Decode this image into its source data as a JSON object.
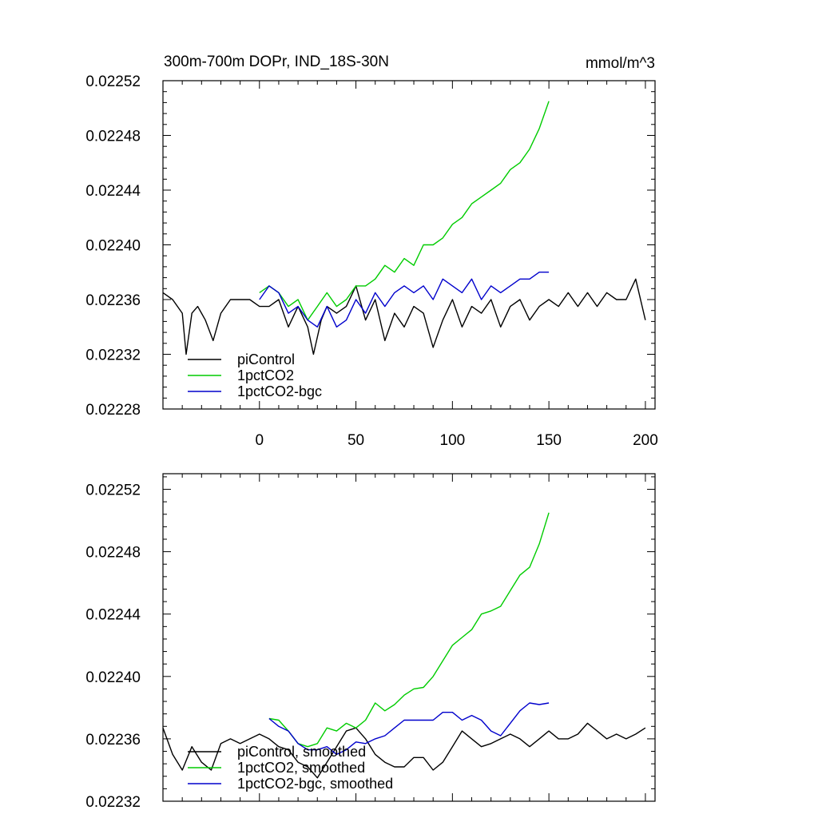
{
  "header": {
    "title": "300m-700m DOPr, IND_18S-30N",
    "units": "mmol/m^3"
  },
  "chart_data": [
    {
      "type": "line",
      "panel": "top",
      "xlim": [
        -50,
        205
      ],
      "ylim": [
        0.02228,
        0.02252
      ],
      "xticks": [
        0,
        50,
        100,
        150,
        200
      ],
      "xticklabels": [
        "0",
        "50",
        "100",
        "150",
        "200"
      ],
      "yticks": [
        0.02228,
        0.02232,
        0.02236,
        0.0224,
        0.02244,
        0.02248,
        0.02252
      ],
      "yticklabels": [
        "0.02228",
        "0.02232",
        "0.02236",
        "0.02240",
        "0.02244",
        "0.02248",
        "0.02252"
      ],
      "grid": false,
      "legend_position": "bottom-left",
      "series": [
        {
          "name": "piControl",
          "color": "#000000",
          "x": [
            -50,
            -45,
            -40,
            -38,
            -35,
            -32,
            -28,
            -24,
            -20,
            -15,
            -10,
            -5,
            0,
            5,
            10,
            15,
            20,
            25,
            28,
            32,
            35,
            40,
            45,
            50,
            55,
            60,
            65,
            70,
            75,
            80,
            85,
            90,
            95,
            100,
            105,
            110,
            115,
            120,
            125,
            130,
            135,
            140,
            145,
            150,
            155,
            160,
            165,
            170,
            175,
            180,
            185,
            190,
            195,
            200
          ],
          "values": [
            0.022365,
            0.02236,
            0.02235,
            0.02232,
            0.02235,
            0.022355,
            0.022345,
            0.02233,
            0.02235,
            0.02236,
            0.02236,
            0.02236,
            0.022355,
            0.022355,
            0.02236,
            0.02234,
            0.022355,
            0.02234,
            0.02232,
            0.022345,
            0.022355,
            0.02235,
            0.022355,
            0.02237,
            0.022345,
            0.02236,
            0.02233,
            0.02235,
            0.02234,
            0.022355,
            0.02235,
            0.022325,
            0.022345,
            0.02236,
            0.02234,
            0.022355,
            0.02235,
            0.02236,
            0.02234,
            0.022355,
            0.02236,
            0.022345,
            0.022355,
            0.02236,
            0.022355,
            0.022365,
            0.022355,
            0.022365,
            0.022355,
            0.022365,
            0.02236,
            0.02236,
            0.022375,
            0.022345
          ]
        },
        {
          "name": "1pctCO2",
          "color": "#00cc00",
          "x": [
            0,
            5,
            10,
            15,
            20,
            25,
            30,
            35,
            40,
            45,
            50,
            55,
            60,
            65,
            70,
            75,
            80,
            85,
            90,
            95,
            100,
            105,
            110,
            115,
            120,
            125,
            130,
            135,
            140,
            145,
            150
          ],
          "values": [
            0.022365,
            0.02237,
            0.022365,
            0.022355,
            0.02236,
            0.022345,
            0.022355,
            0.022365,
            0.022355,
            0.02236,
            0.02237,
            0.02237,
            0.022375,
            0.022385,
            0.02238,
            0.02239,
            0.022385,
            0.0224,
            0.0224,
            0.022405,
            0.022415,
            0.02242,
            0.02243,
            0.022435,
            0.02244,
            0.022445,
            0.022455,
            0.02246,
            0.02247,
            0.022485,
            0.022505
          ]
        },
        {
          "name": "1pctCO2-bgc",
          "color": "#0000cc",
          "x": [
            0,
            5,
            10,
            15,
            20,
            25,
            30,
            35,
            40,
            45,
            50,
            55,
            60,
            65,
            70,
            75,
            80,
            85,
            90,
            95,
            100,
            105,
            110,
            115,
            120,
            125,
            130,
            135,
            140,
            145,
            150
          ],
          "values": [
            0.02236,
            0.02237,
            0.022365,
            0.02235,
            0.022355,
            0.022345,
            0.02234,
            0.022355,
            0.02234,
            0.022345,
            0.02236,
            0.02235,
            0.022365,
            0.022355,
            0.022365,
            0.02237,
            0.022365,
            0.02237,
            0.02236,
            0.022375,
            0.02237,
            0.022365,
            0.022375,
            0.02236,
            0.02237,
            0.022365,
            0.02237,
            0.022375,
            0.022375,
            0.02238,
            0.02238
          ]
        }
      ]
    },
    {
      "type": "line",
      "panel": "bottom",
      "xlim": [
        -50,
        205
      ],
      "ylim": [
        0.02232,
        0.02253
      ],
      "xticks": [
        0,
        50,
        100,
        150,
        200
      ],
      "yticks": [
        0.02232,
        0.02236,
        0.0224,
        0.02244,
        0.02248,
        0.02252
      ],
      "yticklabels": [
        "0.02232",
        "0.02236",
        "0.02240",
        "0.02244",
        "0.02248",
        "0.02252"
      ],
      "grid": false,
      "legend_position": "bottom-left",
      "series": [
        {
          "name": "piControl, smoothed",
          "color": "#000000",
          "x": [
            -50,
            -45,
            -40,
            -35,
            -30,
            -25,
            -20,
            -15,
            -10,
            -5,
            0,
            5,
            10,
            15,
            20,
            25,
            30,
            35,
            40,
            45,
            50,
            55,
            60,
            65,
            70,
            75,
            80,
            85,
            90,
            95,
            100,
            105,
            110,
            115,
            120,
            125,
            130,
            135,
            140,
            145,
            150,
            155,
            160,
            165,
            170,
            175,
            180,
            185,
            190,
            195,
            200
          ],
          "values": [
            0.022367,
            0.02235,
            0.02234,
            0.022355,
            0.022345,
            0.02234,
            0.022357,
            0.02236,
            0.022357,
            0.02236,
            0.022363,
            0.02236,
            0.022355,
            0.022353,
            0.022345,
            0.022342,
            0.022335,
            0.022345,
            0.022355,
            0.022365,
            0.022367,
            0.02236,
            0.02235,
            0.022345,
            0.022342,
            0.022342,
            0.022348,
            0.022348,
            0.02234,
            0.022345,
            0.022355,
            0.022365,
            0.02236,
            0.022355,
            0.022357,
            0.02236,
            0.022363,
            0.02236,
            0.022355,
            0.02236,
            0.022365,
            0.02236,
            0.02236,
            0.022363,
            0.02237,
            0.022365,
            0.02236,
            0.022363,
            0.02236,
            0.022363,
            0.022367
          ]
        },
        {
          "name": "1pctCO2, smoothed",
          "color": "#00cc00",
          "x": [
            5,
            10,
            15,
            20,
            25,
            30,
            35,
            40,
            45,
            50,
            55,
            60,
            65,
            70,
            75,
            80,
            85,
            90,
            95,
            100,
            105,
            110,
            115,
            120,
            125,
            130,
            135,
            140,
            145,
            150
          ],
          "values": [
            0.022373,
            0.022372,
            0.022365,
            0.022357,
            0.022355,
            0.022357,
            0.022367,
            0.022365,
            0.02237,
            0.022367,
            0.022372,
            0.022383,
            0.022378,
            0.022382,
            0.022388,
            0.022392,
            0.022393,
            0.0224,
            0.02241,
            0.02242,
            0.022425,
            0.02243,
            0.02244,
            0.022442,
            0.022445,
            0.022455,
            0.022465,
            0.02247,
            0.022485,
            0.022505
          ]
        },
        {
          "name": "1pctCO2-bgc, smoothed",
          "color": "#0000cc",
          "x": [
            5,
            10,
            15,
            20,
            25,
            30,
            35,
            40,
            45,
            50,
            55,
            60,
            65,
            70,
            75,
            80,
            85,
            90,
            95,
            100,
            105,
            110,
            115,
            120,
            125,
            130,
            135,
            140,
            145,
            150
          ],
          "values": [
            0.022373,
            0.022368,
            0.022365,
            0.022357,
            0.022353,
            0.022353,
            0.022355,
            0.02235,
            0.022353,
            0.022358,
            0.022357,
            0.02236,
            0.022362,
            0.022367,
            0.022372,
            0.022372,
            0.022372,
            0.022372,
            0.022377,
            0.022377,
            0.022372,
            0.022375,
            0.022372,
            0.022365,
            0.022362,
            0.02237,
            0.022378,
            0.022383,
            0.022382,
            0.022383
          ]
        }
      ]
    }
  ]
}
